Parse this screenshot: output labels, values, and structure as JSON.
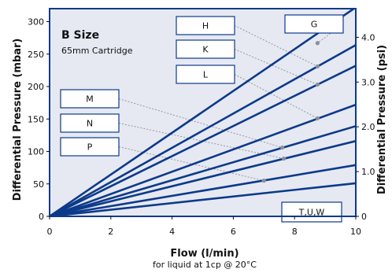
{
  "chart_data": {
    "type": "line",
    "title": "B Size",
    "subtitle": "65mm Cartridge",
    "xlabel": "Flow (l/min)",
    "xlabel_note": "for liquid at 1cp @ 20°C",
    "ylabel": "Differential Pressure (mbar)",
    "y2label": "Differential Pressure (psi)",
    "xlim": [
      0,
      10
    ],
    "ylim": [
      0,
      320
    ],
    "y2lim": [
      0,
      4.64
    ],
    "x_ticks": [
      "0",
      "2",
      "4",
      "6",
      "8",
      "10"
    ],
    "y_ticks": [
      "0",
      "50",
      "100",
      "150",
      "200",
      "250",
      "300"
    ],
    "y2_ticks": [
      "0",
      "1.0",
      "2.0",
      "3.0",
      "4.0"
    ],
    "grid": false,
    "colors": {
      "plot_bg": "#e6e9f2",
      "line": "#0d3a8a",
      "border": "#0d3a8a",
      "label_box": "#ffffff",
      "leader": "#8b8f99",
      "marker": "#8b8f99"
    },
    "series": [
      {
        "name": "G",
        "x": [
          0,
          10
        ],
        "y": [
          0,
          322
        ],
        "label_at": [
          8.75,
          267
        ]
      },
      {
        "name": "H",
        "x": [
          0,
          10
        ],
        "y": [
          0,
          264
        ],
        "label_at": [
          8.75,
          231
        ]
      },
      {
        "name": "K",
        "x": [
          0,
          10
        ],
        "y": [
          0,
          232
        ],
        "label_at": [
          8.75,
          203
        ]
      },
      {
        "name": "L",
        "x": [
          0,
          10
        ],
        "y": [
          0,
          172
        ],
        "label_at": [
          8.75,
          151
        ]
      },
      {
        "name": "M",
        "x": [
          0,
          10
        ],
        "y": [
          0,
          139
        ],
        "label_at": [
          7.6,
          106
        ]
      },
      {
        "name": "N",
        "x": [
          0,
          10
        ],
        "y": [
          0,
          116
        ],
        "label_at": [
          7.65,
          89
        ]
      },
      {
        "name": "P",
        "x": [
          0,
          10
        ],
        "y": [
          0,
          79
        ],
        "label_at": [
          7.0,
          55
        ]
      },
      {
        "name": "T,U,W",
        "x": [
          0,
          10
        ],
        "y": [
          0,
          51
        ]
      }
    ]
  }
}
